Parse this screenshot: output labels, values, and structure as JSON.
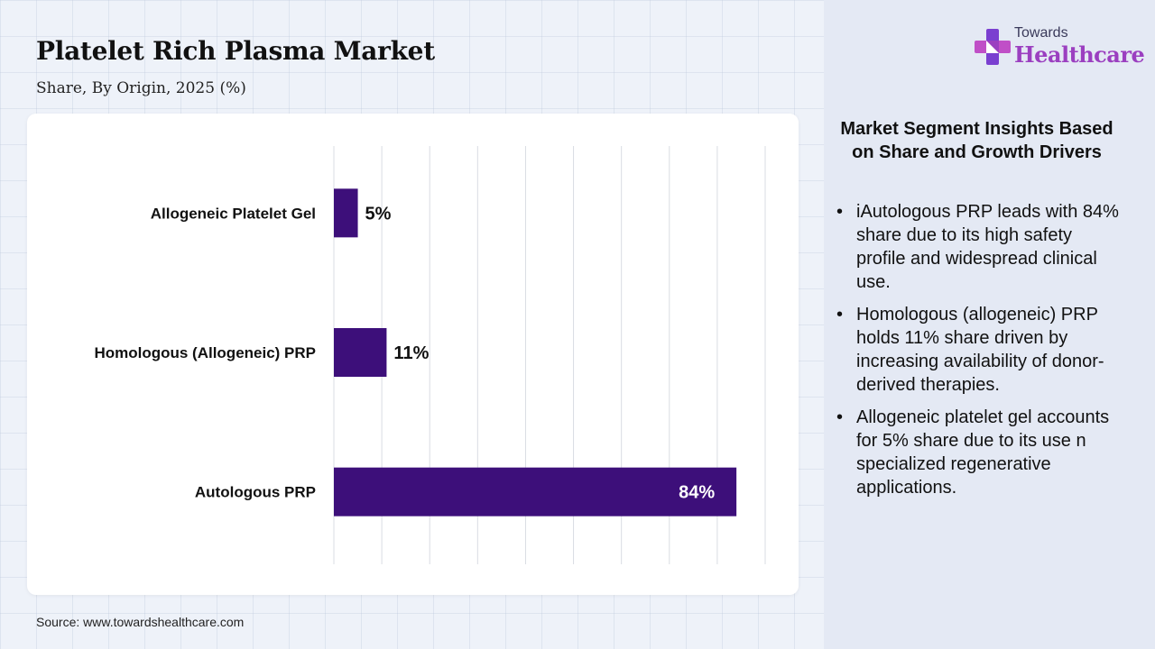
{
  "header": {
    "title": "Platelet Rich Plasma Market",
    "subtitle": "Share, By Origin, 2025 (%)"
  },
  "logo": {
    "line1": "Towards",
    "line2": "Healthcare"
  },
  "chart_data": {
    "type": "bar",
    "orientation": "horizontal",
    "categories": [
      "Allogeneic Platelet Gel",
      "Homologous (Allogeneic) PRP",
      "Autologous PRP"
    ],
    "values": [
      5,
      11,
      84
    ],
    "data_labels": [
      "5%",
      "11%",
      "84%"
    ],
    "xlim": [
      0,
      90
    ],
    "gridline_step": 10,
    "grid": true,
    "bar_color": "#3d0f7a"
  },
  "insights": {
    "title": "Market Segment Insights Based on Share and Growth Drivers",
    "items": [
      "iAutologous PRP leads with 84% share due to its high safety profile and widespread clinical use.",
      "Homologous (allogeneic) PRP holds 11% share driven by increasing availability of donor-derived therapies.",
      "Allogeneic platelet gel accounts for 5% share due to its use n specialized regenerative applications."
    ]
  },
  "source": "Source: www.towardshealthcare.com"
}
